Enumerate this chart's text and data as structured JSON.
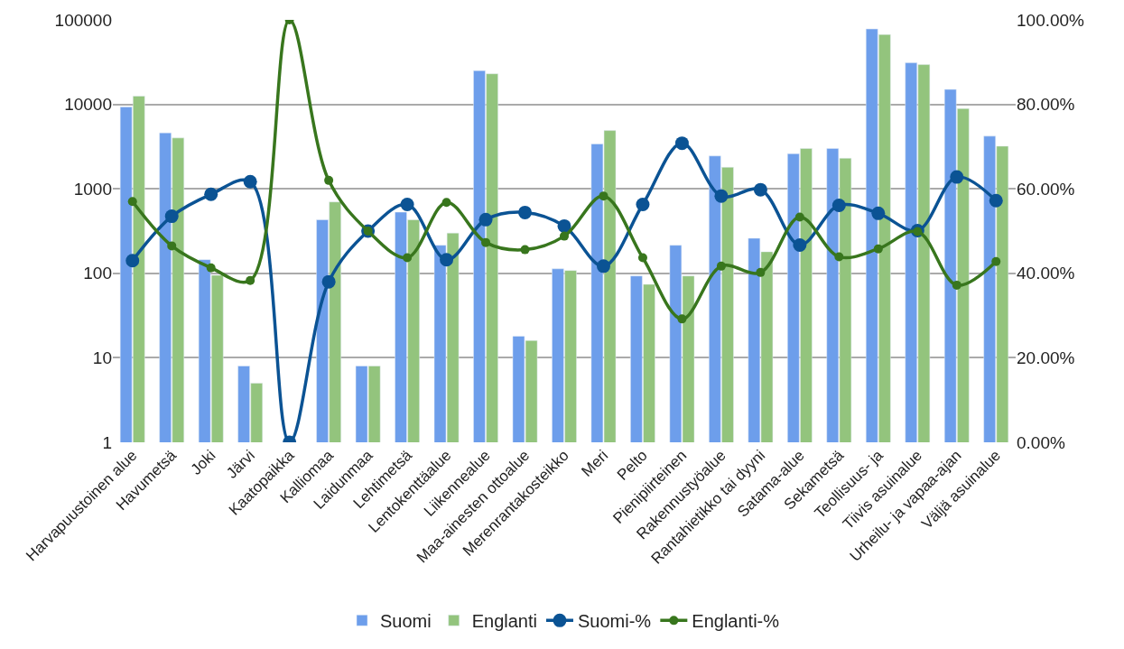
{
  "chart_data": {
    "type": "bar",
    "categories": [
      "Harvapuustoinen alue",
      "Havumetsä",
      "Joki",
      "Järvi",
      "Kaatopaikka",
      "Kalliomaa",
      "Laidunmaa",
      "Lehtimetsä",
      "Lentokenttäalue",
      "Liikennealue",
      "Maa-ainesten ottoalue",
      "Merenrantakosteikko",
      "Meri",
      "Pelto",
      "Pienipiirteinen",
      "Rakennustyöalue",
      "Rantahietikko tai dyyni",
      "Satama-alue",
      "Sekametsä",
      "Teollisuus- ja",
      "Tiivis asuinalue",
      "Urheilu- ja vapaa-ajan",
      "Väljä asuinalue"
    ],
    "series": [
      {
        "name": "Suomi",
        "color": "#6d9eeb",
        "values": [
          9300,
          4600,
          145,
          8,
          null,
          430,
          8,
          530,
          215,
          25000,
          18,
          113,
          3400,
          93,
          215,
          2450,
          260,
          2600,
          3000,
          78000,
          31000,
          15000,
          4200
        ]
      },
      {
        "name": "Englanti",
        "color": "#93c47d",
        "values": [
          12500,
          4000,
          95,
          5,
          null,
          700,
          8,
          430,
          300,
          23000,
          16,
          108,
          4900,
          74,
          93,
          1800,
          180,
          3000,
          2300,
          67000,
          29500,
          8900,
          3200
        ]
      },
      {
        "name": "Suomi-%",
        "type": "line",
        "axis": "y2",
        "color": "#0b5394",
        "values": [
          43,
          53.5,
          58.7,
          61.7,
          0,
          38,
          50,
          56.3,
          43.2,
          52.7,
          54.4,
          51.2,
          41.7,
          56.3,
          70.8,
          58.3,
          59.8,
          46.7,
          56.1,
          54.2,
          50.1,
          62.8,
          57.2
        ]
      },
      {
        "name": "Englanti-%",
        "type": "line",
        "axis": "y2",
        "color": "#38761d",
        "values": [
          57,
          46.5,
          41.3,
          38.3,
          100,
          62,
          50,
          43.7,
          56.8,
          47.3,
          45.6,
          48.8,
          58.3,
          43.7,
          29.2,
          41.7,
          40.2,
          53.3,
          43.9,
          45.8,
          49.9,
          37.2,
          42.8
        ]
      }
    ],
    "log": "y",
    "ylim": [
      1,
      100000
    ],
    "yticks": [
      1,
      10,
      100,
      1000,
      10000,
      100000
    ],
    "y2lim": [
      0,
      100
    ],
    "y2ticks": [
      {
        "value": 0,
        "label": "0.00%"
      },
      {
        "value": 20,
        "label": "20.00%"
      },
      {
        "value": 40,
        "label": "40.00%"
      },
      {
        "value": 60,
        "label": "60.00%"
      },
      {
        "value": 80,
        "label": "80.00%"
      },
      {
        "value": 100,
        "label": "100.00%"
      }
    ],
    "grid": "y",
    "legend": "bottom",
    "marker": "circle",
    "line_style": "solid"
  }
}
